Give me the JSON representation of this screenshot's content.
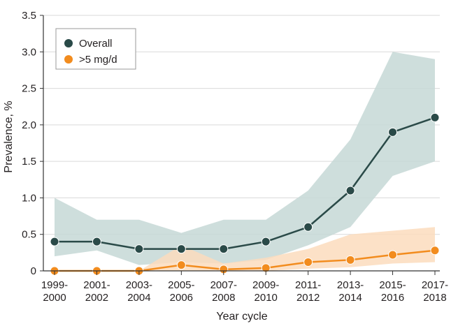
{
  "chart_data": {
    "type": "line",
    "xlabel": "Year cycle",
    "ylabel": "Prevalence, %",
    "ylim": [
      0,
      3.5
    ],
    "yticks": [
      "0",
      "0.5",
      "1.0",
      "1.5",
      "2.0",
      "2.5",
      "3.0",
      "3.5"
    ],
    "categories": [
      [
        "1999-",
        "2000"
      ],
      [
        "2001-",
        "2002"
      ],
      [
        "2003-",
        "2004"
      ],
      [
        "2005-",
        "2006"
      ],
      [
        "2007-",
        "2008"
      ],
      [
        "2009-",
        "2010"
      ],
      [
        "2011-",
        "2012"
      ],
      [
        "2013-",
        "2014"
      ],
      [
        "2015-",
        "2016"
      ],
      [
        "2017-",
        "2018"
      ]
    ],
    "grid": true,
    "legend_position": "top-left",
    "series": [
      {
        "name": "Overall",
        "color": "#2a4a48",
        "band_color": "#c5d8d6",
        "values": [
          0.4,
          0.4,
          0.3,
          0.3,
          0.3,
          0.4,
          0.6,
          1.1,
          1.9,
          2.1
        ],
        "ci_lower": [
          0.2,
          0.28,
          0.08,
          0.12,
          0.1,
          0.15,
          0.35,
          0.6,
          1.3,
          1.5
        ],
        "ci_upper": [
          1.0,
          0.7,
          0.7,
          0.52,
          0.7,
          0.7,
          1.1,
          1.8,
          3.0,
          2.9
        ]
      },
      {
        "name": ">5 mg/d",
        "color": "#f28c1e",
        "band_color": "#fbdcbd",
        "values": [
          0.0,
          0.0,
          0.0,
          0.08,
          0.02,
          0.04,
          0.12,
          0.15,
          0.22,
          0.28
        ],
        "ci_lower": [
          0.0,
          0.0,
          0.0,
          0.0,
          0.0,
          0.0,
          0.03,
          0.05,
          0.1,
          0.12
        ],
        "ci_upper": [
          0.0,
          0.0,
          0.0,
          0.35,
          0.1,
          0.18,
          0.3,
          0.5,
          0.55,
          0.6
        ]
      }
    ]
  }
}
